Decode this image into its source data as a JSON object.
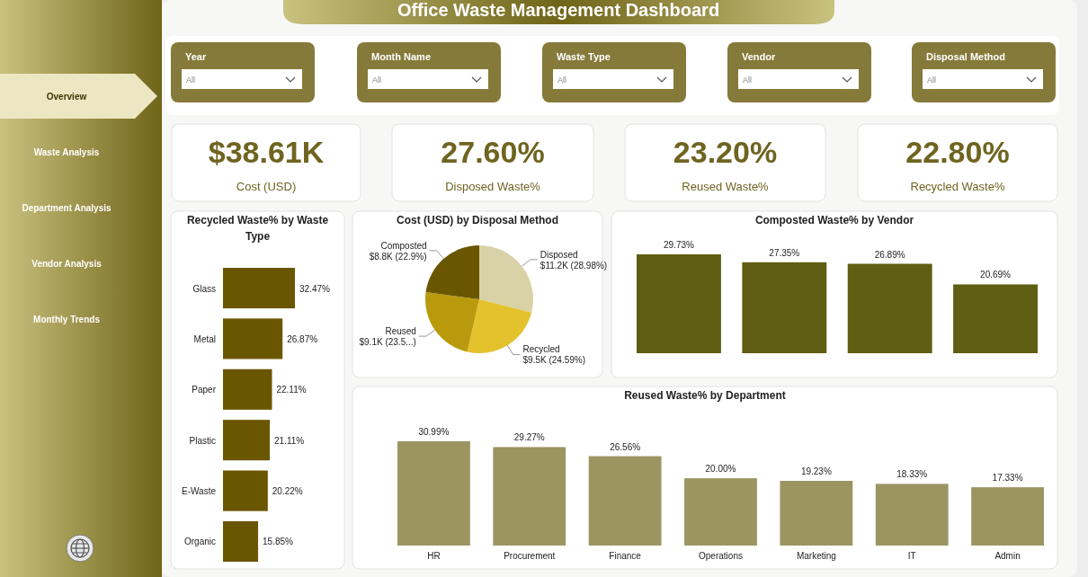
{
  "chart_data": [
    {
      "type": "other",
      "title": "Office Waste Management Dashboard",
      "annotations": [
        "Overview",
        "Waste Analysis",
        "Department Analysis",
        "Vendor Analysis",
        "Monthly Trends",
        "Year",
        "Month Name",
        "Waste Type",
        "Vendor",
        "Disposal Method",
        "All",
        "All",
        "All",
        "All",
        "All",
        "$38.61K",
        "Cost (USD)",
        "27.60%",
        "Disposed Waste%",
        "23.20%",
        "Reused Waste%",
        "22.80%",
        "Recycled Waste%"
      ]
    },
    {
      "type": "bar",
      "orientation": "horizontal",
      "title": "Recycled Waste% by Waste Type",
      "categories": [
        "Glass",
        "Metal",
        "Paper",
        "Plastic",
        "E-Waste",
        "Organic"
      ],
      "values": [
        32.47,
        26.87,
        22.11,
        21.11,
        20.22,
        15.85
      ],
      "value_labels": [
        "32.47%",
        "26.87%",
        "22.11%",
        "21.11%",
        "20.22%",
        "15.85%"
      ],
      "color": "#6b5600"
    },
    {
      "type": "pie",
      "title": "Cost (USD) by Disposal Method",
      "categories": [
        "Disposed",
        "Recycled",
        "Reused",
        "Composted"
      ],
      "values": [
        28.98,
        24.59,
        23.53,
        22.9
      ],
      "value_labels": [
        "$11.2K (28.98%)",
        "$9.5K (24.59%)",
        "$9.1K (23.5...)",
        "$8.8K (22.9%)"
      ],
      "colors": [
        "#d9d2a6",
        "#e3c22e",
        "#b99a0c",
        "#6b5600"
      ]
    },
    {
      "type": "bar",
      "title": "Composted Waste% by Vendor",
      "categories": [
        null,
        null,
        null,
        null
      ],
      "values": [
        29.73,
        27.35,
        26.89,
        20.69
      ],
      "value_labels": [
        "29.73%",
        "27.35%",
        "26.89%",
        "20.69%"
      ],
      "color": "#5f5e12"
    },
    {
      "type": "bar",
      "title": "Reused Waste% by Department",
      "categories": [
        "HR",
        "Procurement",
        "Finance",
        "Operations",
        "Marketing",
        "IT",
        "Admin"
      ],
      "values": [
        30.99,
        29.27,
        26.56,
        20.0,
        19.23,
        18.33,
        17.33
      ],
      "value_labels": [
        "30.99%",
        "29.27%",
        "26.56%",
        "20.00%",
        "19.23%",
        "18.33%",
        "17.33%"
      ],
      "color": "#9c9562"
    }
  ]
}
